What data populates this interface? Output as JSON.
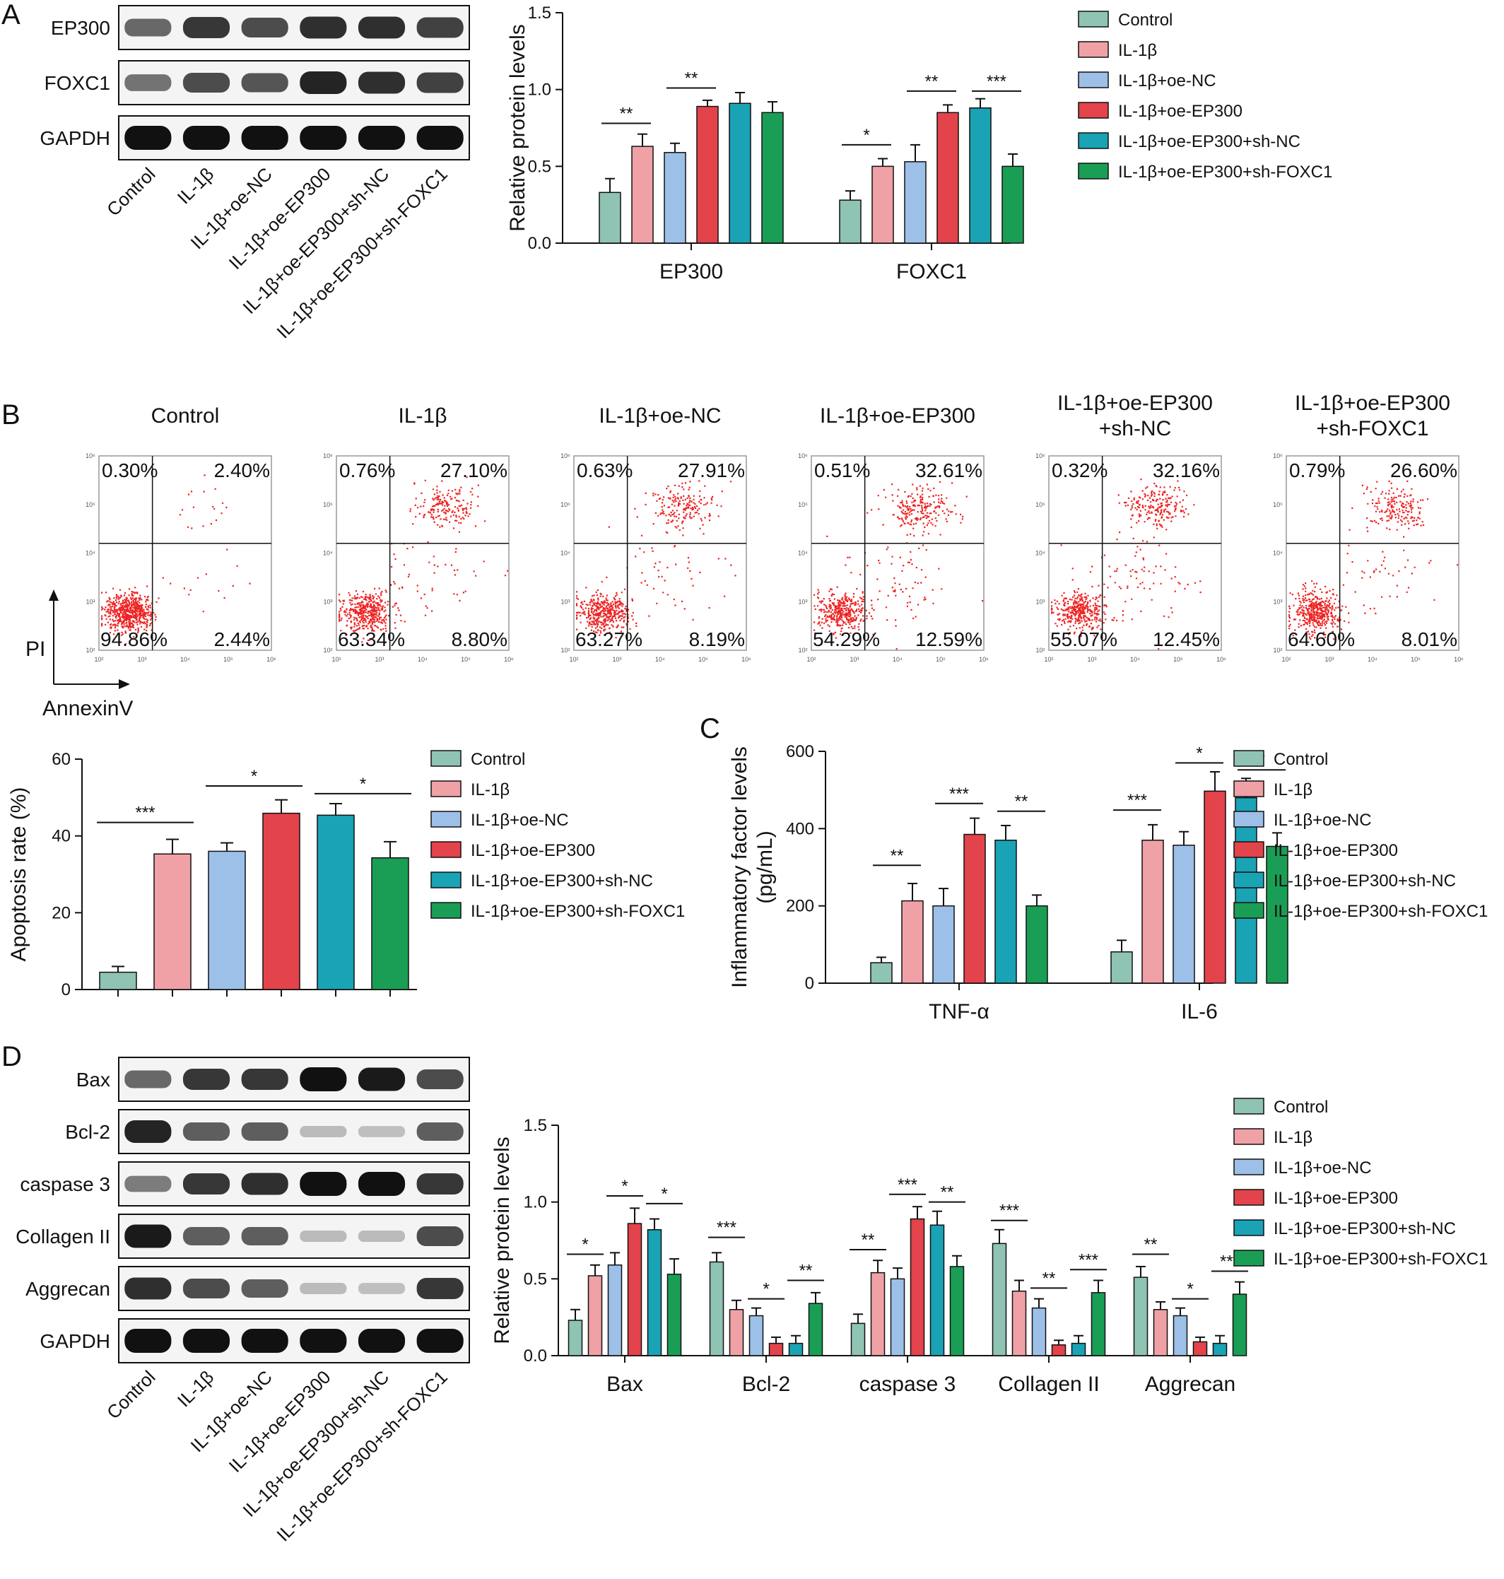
{
  "colors": {
    "groups": [
      "#8fc3b4",
      "#f0a1a6",
      "#9dc0e8",
      "#e3434b",
      "#1aa3b5",
      "#1a9e55"
    ],
    "dots": "#ee2222",
    "band": "#111111"
  },
  "groups": [
    "Control",
    "IL-1β",
    "IL-1β+oe-NC",
    "IL-1β+oe-EP300",
    "IL-1β+oe-EP300+sh-NC",
    "IL-1β+oe-EP300+sh-FOXC1"
  ],
  "panelA": {
    "letter": "A",
    "blots": [
      "EP300",
      "FOXC1",
      "GAPDH"
    ],
    "lanes": [
      "Control",
      "IL-1β",
      "IL-1β+oe-NC",
      "IL-1β+oe-EP300",
      "IL-1β+oe-EP300+sh-NC",
      "IL-1β+oe-EP300+sh-FOXC1"
    ]
  },
  "panelB": {
    "letter": "B",
    "plots": [
      {
        "title": [
          "Control"
        ],
        "q": [
          "0.30%",
          "2.40%",
          "94.86%",
          "2.44%"
        ]
      },
      {
        "title": [
          "IL-1β"
        ],
        "q": [
          "0.76%",
          "27.10%",
          "63.34%",
          "8.80%"
        ]
      },
      {
        "title": [
          "IL-1β+oe-NC"
        ],
        "q": [
          "0.63%",
          "27.91%",
          "63.27%",
          "8.19%"
        ]
      },
      {
        "title": [
          "IL-1β+oe-EP300"
        ],
        "q": [
          "0.51%",
          "32.61%",
          "54.29%",
          "12.59%"
        ]
      },
      {
        "title": [
          "IL-1β+oe-EP300",
          "+sh-NC"
        ],
        "q": [
          "0.32%",
          "32.16%",
          "55.07%",
          "12.45%"
        ]
      },
      {
        "title": [
          "IL-1β+oe-EP300",
          "+sh-FOXC1"
        ],
        "q": [
          "0.79%",
          "26.60%",
          "64.60%",
          "8.01%"
        ]
      }
    ],
    "yaxis": "PI",
    "xaxis": "AnnexinV"
  },
  "panelC": {
    "letter": "C"
  },
  "panelD": {
    "letter": "D",
    "blots": [
      "Bax",
      "Bcl-2",
      "caspase 3",
      "Collagen II",
      "Aggrecan",
      "GAPDH"
    ],
    "lanes": [
      "Control",
      "IL-1β",
      "IL-1β+oe-NC",
      "IL-1β+oe-EP300",
      "IL-1β+oe-EP300+sh-NC",
      "IL-1β+oe-EP300+sh-FOXC1"
    ]
  },
  "chart_data": [
    {
      "id": "A",
      "type": "bar",
      "ylabel": "Relative protein levels",
      "ylim": [
        0,
        1.5
      ],
      "yticks": [
        "0.0",
        "0.5",
        "1.0",
        "1.5"
      ],
      "categories": [
        "EP300",
        "FOXC1"
      ],
      "series": [
        {
          "name": "Control",
          "values": [
            0.33,
            0.28
          ],
          "errors": [
            0.09,
            0.06
          ]
        },
        {
          "name": "IL-1β",
          "values": [
            0.63,
            0.5
          ],
          "errors": [
            0.08,
            0.05
          ]
        },
        {
          "name": "IL-1β+oe-NC",
          "values": [
            0.59,
            0.53
          ],
          "errors": [
            0.06,
            0.11
          ]
        },
        {
          "name": "IL-1β+oe-EP300",
          "values": [
            0.89,
            0.85
          ],
          "errors": [
            0.04,
            0.05
          ]
        },
        {
          "name": "IL-1β+oe-EP300+sh-NC",
          "values": [
            0.91,
            0.88
          ],
          "errors": [
            0.07,
            0.06
          ]
        },
        {
          "name": "IL-1β+oe-EP300+sh-FOXC1",
          "values": [
            0.85,
            0.5
          ],
          "errors": [
            0.07,
            0.08
          ]
        }
      ],
      "significance": [
        {
          "cat": 0,
          "from": 0,
          "to": 1,
          "label": "**",
          "level": 0.78
        },
        {
          "cat": 0,
          "from": 2,
          "to": 3,
          "label": "**",
          "level": 1.01
        },
        {
          "cat": 1,
          "from": 0,
          "to": 1,
          "label": "*",
          "level": 0.64
        },
        {
          "cat": 1,
          "from": 2,
          "to": 3,
          "label": "**",
          "level": 0.99
        },
        {
          "cat": 1,
          "from": 4,
          "to": 5,
          "label": "***",
          "level": 0.99
        }
      ]
    },
    {
      "id": "B",
      "type": "bar",
      "ylabel": "Apoptosis rate (%)",
      "ylim": [
        0,
        60
      ],
      "yticks": [
        "0",
        "20",
        "40",
        "60"
      ],
      "categories": [
        "Control",
        "IL-1β",
        "IL-1β+oe-NC",
        "IL-1β+oe-EP300",
        "IL-1β+oe-EP300+sh-NC",
        "IL-1β+oe-EP300+sh-FOXC1"
      ],
      "values": [
        4.5,
        35.3,
        36.0,
        45.9,
        45.4,
        34.3
      ],
      "errors": [
        1.5,
        3.8,
        2.2,
        3.5,
        3.0,
        4.2
      ],
      "significance": [
        {
          "from": 0,
          "to": 1,
          "label": "***",
          "level": 43.5
        },
        {
          "from": 2,
          "to": 3,
          "label": "*",
          "level": 53.0
        },
        {
          "from": 4,
          "to": 5,
          "label": "*",
          "level": 51.0
        }
      ]
    },
    {
      "id": "C",
      "type": "bar",
      "ylabel": "Inflammatory factor levels (pg/mL)",
      "ylim": [
        0,
        600
      ],
      "yticks": [
        "0",
        "200",
        "400",
        "600"
      ],
      "categories": [
        "TNF-α",
        "IL-6"
      ],
      "series": [
        {
          "name": "Control",
          "values": [
            53,
            81
          ],
          "errors": [
            14,
            30
          ]
        },
        {
          "name": "IL-1β",
          "values": [
            213,
            370
          ],
          "errors": [
            45,
            40
          ]
        },
        {
          "name": "IL-1β+oe-NC",
          "values": [
            200,
            357
          ],
          "errors": [
            45,
            35
          ]
        },
        {
          "name": "IL-1β+oe-EP300",
          "values": [
            385,
            497
          ],
          "errors": [
            42,
            50
          ]
        },
        {
          "name": "IL-1β+oe-EP300+sh-NC",
          "values": [
            370,
            480
          ],
          "errors": [
            38,
            50
          ]
        },
        {
          "name": "IL-1β+oe-EP300+sh-FOXC1",
          "values": [
            200,
            354
          ],
          "errors": [
            28,
            35
          ]
        }
      ],
      "significance": [
        {
          "cat": 0,
          "from": 0,
          "to": 1,
          "label": "**",
          "level": 305
        },
        {
          "cat": 0,
          "from": 2,
          "to": 3,
          "label": "***",
          "level": 465
        },
        {
          "cat": 0,
          "from": 4,
          "to": 5,
          "label": "**",
          "level": 445
        },
        {
          "cat": 1,
          "from": 0,
          "to": 1,
          "label": "***",
          "level": 448
        },
        {
          "cat": 1,
          "from": 2,
          "to": 3,
          "label": "*",
          "level": 570
        },
        {
          "cat": 1,
          "from": 4,
          "to": 5,
          "label": "*",
          "level": 552
        }
      ]
    },
    {
      "id": "D",
      "type": "bar",
      "ylabel": "Relative protein levels",
      "ylim": [
        0,
        1.5
      ],
      "yticks": [
        "0.0",
        "0.5",
        "1.0",
        "1.5"
      ],
      "categories": [
        "Bax",
        "Bcl-2",
        "caspase 3",
        "Collagen II",
        "Aggrecan"
      ],
      "series": [
        {
          "name": "Control",
          "values": [
            0.23,
            0.61,
            0.21,
            0.73,
            0.51
          ],
          "errors": [
            0.07,
            0.06,
            0.06,
            0.09,
            0.07
          ]
        },
        {
          "name": "IL-1β",
          "values": [
            0.52,
            0.3,
            0.54,
            0.42,
            0.3
          ],
          "errors": [
            0.07,
            0.06,
            0.08,
            0.07,
            0.05
          ]
        },
        {
          "name": "IL-1β+oe-NC",
          "values": [
            0.59,
            0.26,
            0.5,
            0.31,
            0.26
          ],
          "errors": [
            0.08,
            0.05,
            0.07,
            0.06,
            0.05
          ]
        },
        {
          "name": "IL-1β+oe-EP300",
          "values": [
            0.86,
            0.08,
            0.89,
            0.07,
            0.09
          ],
          "errors": [
            0.1,
            0.04,
            0.08,
            0.03,
            0.03
          ]
        },
        {
          "name": "IL-1β+oe-EP300+sh-NC",
          "values": [
            0.82,
            0.08,
            0.85,
            0.08,
            0.08
          ],
          "errors": [
            0.07,
            0.05,
            0.09,
            0.05,
            0.05
          ]
        },
        {
          "name": "IL-1β+oe-EP300+sh-FOXC1",
          "values": [
            0.53,
            0.34,
            0.58,
            0.41,
            0.4
          ],
          "errors": [
            0.1,
            0.07,
            0.07,
            0.08,
            0.08
          ]
        }
      ],
      "significance": [
        {
          "cat": 0,
          "from": 0,
          "to": 1,
          "label": "*",
          "level": 0.66
        },
        {
          "cat": 0,
          "from": 2,
          "to": 3,
          "label": "*",
          "level": 1.04
        },
        {
          "cat": 0,
          "from": 4,
          "to": 5,
          "label": "*",
          "level": 0.99
        },
        {
          "cat": 1,
          "from": 0,
          "to": 1,
          "label": "***",
          "level": 0.77
        },
        {
          "cat": 1,
          "from": 2,
          "to": 3,
          "label": "*",
          "level": 0.37
        },
        {
          "cat": 1,
          "from": 4,
          "to": 5,
          "label": "**",
          "level": 0.49
        },
        {
          "cat": 2,
          "from": 0,
          "to": 1,
          "label": "**",
          "level": 0.69
        },
        {
          "cat": 2,
          "from": 2,
          "to": 3,
          "label": "***",
          "level": 1.05
        },
        {
          "cat": 2,
          "from": 4,
          "to": 5,
          "label": "**",
          "level": 1.0
        },
        {
          "cat": 3,
          "from": 0,
          "to": 1,
          "label": "***",
          "level": 0.88
        },
        {
          "cat": 3,
          "from": 2,
          "to": 3,
          "label": "**",
          "level": 0.44
        },
        {
          "cat": 3,
          "from": 4,
          "to": 5,
          "label": "***",
          "level": 0.56
        },
        {
          "cat": 4,
          "from": 0,
          "to": 1,
          "label": "**",
          "level": 0.66
        },
        {
          "cat": 4,
          "from": 2,
          "to": 3,
          "label": "*",
          "level": 0.37
        },
        {
          "cat": 4,
          "from": 4,
          "to": 5,
          "label": "***",
          "level": 0.55
        }
      ]
    }
  ]
}
